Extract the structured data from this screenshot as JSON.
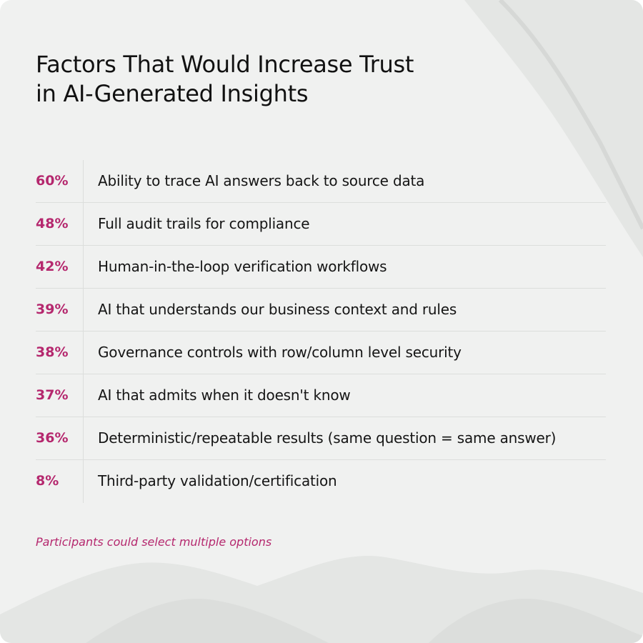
{
  "header": {
    "title": [
      "Factors That Would Increase Trust",
      "in AI-Generated Insights"
    ]
  },
  "table": {
    "rows": [
      [
        "60%",
        "Ability to trace AI answers back to source data"
      ],
      [
        "48%",
        "Full audit trails for compliance"
      ],
      [
        "42%",
        "Human-in-the-loop verification workflows"
      ],
      [
        "39%",
        "AI that understands our business context and rules"
      ],
      [
        "38%",
        "Governance controls with row/column level security"
      ],
      [
        "37%",
        "AI that admits when it doesn't know"
      ],
      [
        "36%",
        "Deterministic/repeatable results (same question = same answer)"
      ],
      [
        "8%",
        "Third-party validation/certification"
      ]
    ]
  },
  "footnote": "Participants could select multiple options"
}
